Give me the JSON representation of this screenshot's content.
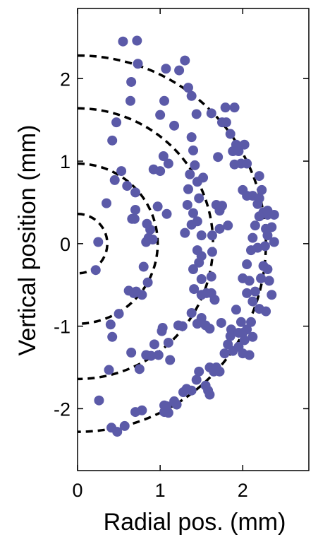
{
  "chart_data": {
    "type": "scatter",
    "xlabel": "Radial pos. (mm)",
    "ylabel": "Vertical position (mm)",
    "xlim": [
      0,
      2.8
    ],
    "ylim": [
      -2.75,
      2.85
    ],
    "xticks": [
      0,
      1,
      2
    ],
    "yticks": [
      -2,
      -1,
      0,
      1,
      2
    ],
    "xtick_labels": [
      "0",
      "1",
      "2"
    ],
    "ytick_labels": [
      "-2",
      "-1",
      "0",
      "1",
      "2"
    ],
    "grid": false,
    "point_color": "#5b5aa8",
    "dashed_arcs": [
      {
        "radius": 0.36
      },
      {
        "radius": 0.97
      },
      {
        "radius": 1.64
      },
      {
        "radius": 2.28
      }
    ],
    "points": [
      [
        0.55,
        2.45
      ],
      [
        0.72,
        2.46
      ],
      [
        0.73,
        2.18
      ],
      [
        0.65,
        1.96
      ],
      [
        0.64,
        1.73
      ],
      [
        0.47,
        1.47
      ],
      [
        0.42,
        1.25
      ],
      [
        0.35,
        0.49
      ],
      [
        0.25,
        0.02
      ],
      [
        0.22,
        -0.32
      ],
      [
        0.45,
        0.77
      ],
      [
        0.53,
        0.88
      ],
      [
        0.6,
        0.7
      ],
      [
        0.7,
        0.62
      ],
      [
        0.7,
        0.41
      ],
      [
        0.69,
        0.3
      ],
      [
        0.66,
        0.3
      ],
      [
        0.84,
        0.24
      ],
      [
        0.88,
        0.17
      ],
      [
        0.86,
        0.07
      ],
      [
        0.83,
        0.02
      ],
      [
        0.8,
        -0.28
      ],
      [
        0.78,
        -0.62
      ],
      [
        0.71,
        -0.58
      ],
      [
        0.62,
        -0.57
      ],
      [
        0.68,
        -0.6
      ],
      [
        0.85,
        -0.47
      ],
      [
        0.5,
        -0.85
      ],
      [
        0.4,
        -0.98
      ],
      [
        0.42,
        -1.13
      ],
      [
        0.65,
        -1.32
      ],
      [
        0.38,
        -1.53
      ],
      [
        0.26,
        -1.9
      ],
      [
        0.41,
        -2.23
      ],
      [
        0.48,
        -2.28
      ],
      [
        0.57,
        -2.21
      ],
      [
        0.78,
        -2.02
      ],
      [
        0.7,
        -2.04
      ],
      [
        0.75,
        -1.52
      ],
      [
        0.89,
        -1.36
      ],
      [
        0.83,
        -1.35
      ],
      [
        0.98,
        -1.35
      ],
      [
        1.03,
        -1.02
      ],
      [
        1.1,
        -1.2
      ],
      [
        1.12,
        -1.41
      ],
      [
        1.05,
        -1.96
      ],
      [
        1.05,
        -2.04
      ],
      [
        1.08,
        -1.97
      ],
      [
        0.93,
        -1.22
      ],
      [
        1.02,
        -1.06
      ],
      [
        1.07,
        2.12
      ],
      [
        1.0,
        1.56
      ],
      [
        1.05,
        1.73
      ],
      [
        1.04,
        1.06
      ],
      [
        1.0,
        0.88
      ],
      [
        1.1,
        0.97
      ],
      [
        0.92,
        0.9
      ],
      [
        1.08,
        0.36
      ],
      [
        0.97,
        0.45
      ],
      [
        0.91,
        0.05
      ],
      [
        1.17,
        1.43
      ],
      [
        1.3,
        2.22
      ],
      [
        1.23,
        2.1
      ],
      [
        1.34,
        1.89
      ],
      [
        1.38,
        1.79
      ],
      [
        1.44,
        1.57
      ],
      [
        1.38,
        1.29
      ],
      [
        1.4,
        1.13
      ],
      [
        1.42,
        0.95
      ],
      [
        1.36,
        0.84
      ],
      [
        1.45,
        0.75
      ],
      [
        1.52,
        0.8
      ],
      [
        1.34,
        0.66
      ],
      [
        1.47,
        0.55
      ],
      [
        1.33,
        0.47
      ],
      [
        1.4,
        0.37
      ],
      [
        1.45,
        0.27
      ],
      [
        1.38,
        0.23
      ],
      [
        1.3,
        0.13
      ],
      [
        1.5,
        0.1
      ],
      [
        1.45,
        -0.08
      ],
      [
        1.5,
        -0.15
      ],
      [
        1.47,
        -0.23
      ],
      [
        1.4,
        -0.31
      ],
      [
        1.5,
        -0.43
      ],
      [
        1.41,
        -0.55
      ],
      [
        1.5,
        -0.62
      ],
      [
        1.56,
        -0.6
      ],
      [
        1.38,
        -0.84
      ],
      [
        1.5,
        -0.9
      ],
      [
        1.45,
        -0.97
      ],
      [
        1.55,
        -0.99
      ],
      [
        1.6,
        -1.03
      ],
      [
        1.27,
        -1.0
      ],
      [
        1.22,
        -0.99
      ],
      [
        1.47,
        -1.55
      ],
      [
        1.44,
        -1.65
      ],
      [
        1.32,
        -1.76
      ],
      [
        1.28,
        -1.8
      ],
      [
        1.38,
        -1.78
      ],
      [
        1.17,
        -1.91
      ],
      [
        1.2,
        -1.95
      ],
      [
        1.1,
        -2.05
      ],
      [
        1.55,
        -1.72
      ],
      [
        1.6,
        -1.5
      ],
      [
        1.65,
        -1.55
      ],
      [
        1.72,
        -1.55
      ],
      [
        1.68,
        -1.5
      ],
      [
        1.58,
        -1.78
      ],
      [
        1.6,
        -1.83
      ],
      [
        1.62,
        1.58
      ],
      [
        1.75,
        1.47
      ],
      [
        1.8,
        1.47
      ],
      [
        1.79,
        1.65
      ],
      [
        1.9,
        1.65
      ],
      [
        1.85,
        1.33
      ],
      [
        1.7,
        1.05
      ],
      [
        1.68,
        0.47
      ],
      [
        1.75,
        0.46
      ],
      [
        1.72,
        0.4
      ],
      [
        1.82,
        0.22
      ],
      [
        1.72,
        0.18
      ],
      [
        1.63,
        0.1
      ],
      [
        1.63,
        -0.1
      ],
      [
        1.62,
        -0.4
      ],
      [
        1.62,
        -0.6
      ],
      [
        1.66,
        -0.68
      ],
      [
        1.74,
        -0.96
      ],
      [
        1.86,
        -1.04
      ],
      [
        1.85,
        -1.12
      ],
      [
        1.82,
        -1.22
      ],
      [
        1.78,
        -1.33
      ],
      [
        1.88,
        -1.3
      ],
      [
        1.95,
        -1.25
      ],
      [
        1.95,
        -1.08
      ],
      [
        2.0,
        -1.08
      ],
      [
        2.05,
        -1.04
      ],
      [
        2.02,
        -1.17
      ],
      [
        2.12,
        -1.13
      ],
      [
        2.08,
        -1.35
      ],
      [
        2.0,
        -1.33
      ],
      [
        1.92,
        1.2
      ],
      [
        1.88,
        1.12
      ],
      [
        1.95,
        1.12
      ],
      [
        2.02,
        1.2
      ],
      [
        1.98,
        0.97
      ],
      [
        1.9,
        0.96
      ],
      [
        2.05,
        0.97
      ],
      [
        2.0,
        0.65
      ],
      [
        2.05,
        0.58
      ],
      [
        2.12,
        0.58
      ],
      [
        2.18,
        0.48
      ],
      [
        2.2,
        0.55
      ],
      [
        2.23,
        0.65
      ],
      [
        2.25,
        0.38
      ],
      [
        2.3,
        0.35
      ],
      [
        2.38,
        0.35
      ],
      [
        2.28,
        0.18
      ],
      [
        2.3,
        0.1
      ],
      [
        2.35,
        0.2
      ],
      [
        2.15,
        0.22
      ],
      [
        2.12,
        0.07
      ],
      [
        2.18,
        -0.05
      ],
      [
        2.1,
        -0.08
      ],
      [
        2.05,
        -0.25
      ],
      [
        2.0,
        -0.42
      ],
      [
        2.08,
        -0.45
      ],
      [
        2.05,
        -0.6
      ],
      [
        2.12,
        -0.7
      ],
      [
        2.15,
        -0.58
      ],
      [
        2.22,
        -0.42
      ],
      [
        2.25,
        -0.27
      ],
      [
        2.3,
        -0.31
      ],
      [
        2.32,
        -0.45
      ],
      [
        2.35,
        -0.62
      ],
      [
        2.28,
        -0.82
      ],
      [
        2.2,
        -0.79
      ],
      [
        2.1,
        -0.95
      ],
      [
        2.38,
        0.02
      ],
      [
        2.27,
        -0.03
      ],
      [
        2.2,
        0.82
      ],
      [
        2.2,
        0.33
      ],
      [
        2.3,
        0.4
      ],
      [
        1.92,
        -0.8
      ],
      [
        1.98,
        -0.95
      ]
    ]
  }
}
